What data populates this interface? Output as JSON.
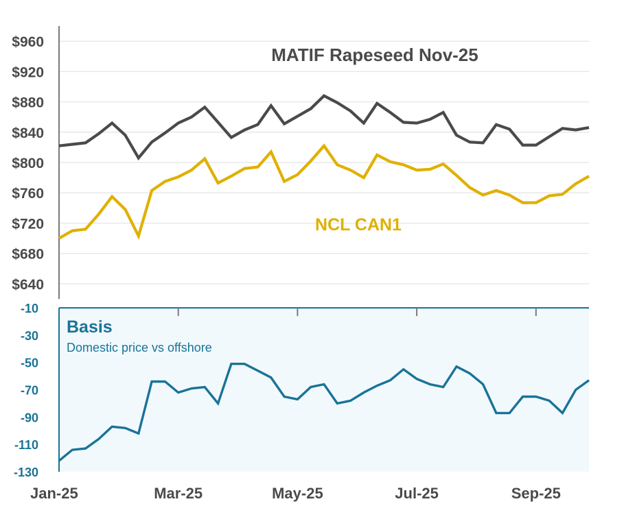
{
  "chart_data": [
    {
      "type": "line",
      "title": "MATIF Rapeseed Nov-25",
      "ylim": [
        620,
        980
      ],
      "yticks": [
        640,
        680,
        720,
        760,
        800,
        840,
        880,
        920,
        960
      ],
      "ytick_labels": [
        "$640",
        "$680",
        "$720",
        "$760",
        "$800",
        "$840",
        "$880",
        "$920",
        "$960"
      ],
      "grid": true,
      "series": [
        {
          "name": "MATIF Rapeseed Nov-25",
          "color": "#4a4a4a",
          "values": [
            822,
            824,
            826,
            838,
            852,
            836,
            806,
            827,
            839,
            852,
            860,
            873,
            853,
            833,
            843,
            850,
            875,
            851,
            861,
            871,
            888,
            879,
            868,
            852,
            878,
            866,
            853,
            852,
            857,
            866,
            836,
            827,
            826,
            850,
            844,
            823,
            823,
            834,
            845,
            843,
            846
          ]
        },
        {
          "name": "NCL CAN1",
          "color": "#e0b000",
          "values": [
            700,
            710,
            712,
            732,
            755,
            738,
            703,
            763,
            775,
            781,
            790,
            805,
            773,
            782,
            792,
            794,
            814,
            775,
            784,
            802,
            822,
            797,
            790,
            780,
            810,
            801,
            797,
            790,
            791,
            798,
            783,
            767,
            757,
            763,
            757,
            747,
            747,
            756,
            758,
            772,
            782
          ]
        }
      ]
    },
    {
      "type": "line",
      "title": "Basis",
      "subtitle": "Domestic price vs offshore",
      "ylim": [
        -130,
        -10
      ],
      "yticks": [
        -10,
        -30,
        -50,
        -70,
        -90,
        -110,
        -130
      ],
      "ytick_labels": [
        "-10",
        "-30",
        "-50",
        "-70",
        "-90",
        "-110",
        "-130"
      ],
      "series": [
        {
          "name": "Basis",
          "color": "#1a7396",
          "values": [
            -122,
            -114,
            -113,
            -106,
            -97,
            -98,
            -102,
            -64,
            -64,
            -72,
            -69,
            -68,
            -80,
            -51,
            -51,
            -56,
            -61,
            -75,
            -77,
            -68,
            -66,
            -80,
            -78,
            -72,
            -67,
            -63,
            -55,
            -62,
            -66,
            -68,
            -53,
            -58,
            -66,
            -87,
            -87,
            -75,
            -75,
            -78,
            -87,
            -70,
            -63
          ]
        }
      ]
    }
  ],
  "x_axis": {
    "labels": [
      "Jan-25",
      "Mar-25",
      "May-25",
      "Jul-25",
      "Sep-25"
    ],
    "label_positions": [
      0,
      9,
      18,
      27,
      36
    ]
  },
  "annotations": {
    "top_title": "MATIF Rapeseed Nov-25",
    "ncl_label": "NCL CAN1",
    "basis_title": "Basis",
    "basis_subtitle": "Domestic price vs offshore"
  },
  "colors": {
    "matif": "#4a4a4a",
    "ncl": "#e0b000",
    "basis": "#1a7396",
    "basis_panel": "#f1f9fd",
    "grid": "#e3e3e3",
    "axis": "#7a7a7a"
  }
}
